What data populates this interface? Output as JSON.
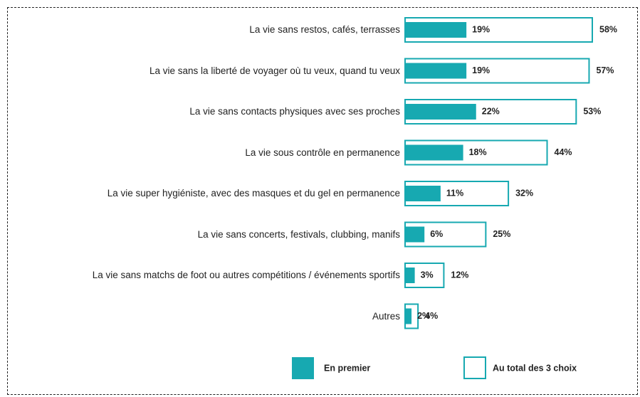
{
  "chart_data": {
    "type": "bar",
    "orientation": "horizontal",
    "categories": [
      "La vie sans restos, cafés, terrasses",
      "La vie sans la liberté de voyager où tu veux, quand tu veux",
      "La vie sans contacts physiques avec ses proches",
      "La vie sous contrôle en permanence",
      "La vie super hygiéniste, avec des masques et du gel en permanence",
      "La vie sans concerts, festivals, clubbing, manifs",
      "La vie sans matchs de foot ou autres compétitions / événements sportifs",
      "Autres"
    ],
    "series": [
      {
        "name": "En premier",
        "color": "#17a9b1",
        "values": [
          19,
          19,
          22,
          18,
          11,
          6,
          3,
          2
        ],
        "value_labels": [
          "19%",
          "19%",
          "22%",
          "18%",
          "11%",
          "6%",
          "3%",
          "2%"
        ]
      },
      {
        "name": "Au total des 3 choix",
        "color": "#17a9b1",
        "values": [
          58,
          57,
          53,
          44,
          32,
          25,
          12,
          4
        ],
        "value_labels": [
          "58%",
          "57%",
          "53%",
          "44%",
          "32%",
          "25%",
          "12%",
          "4%"
        ]
      }
    ]
  }
}
